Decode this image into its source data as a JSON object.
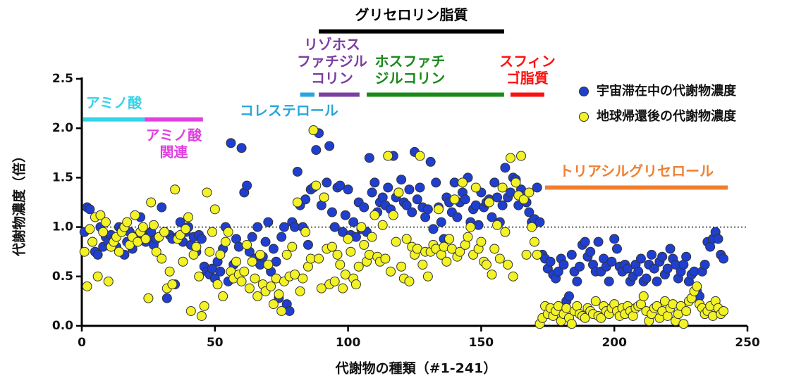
{
  "chart_data": {
    "type": "scatter",
    "x_label": "代謝物の種類（#1-241）",
    "y_label": "代謝物濃度（倍）",
    "xlim": [
      0,
      250
    ],
    "xticks": [
      0,
      50,
      100,
      150,
      200,
      250
    ],
    "ylim": [
      0,
      2.5
    ],
    "yticks": [
      {
        "value": 0,
        "label": "0.0"
      },
      0.5,
      {
        "value": 1,
        "label": "1.0"
      },
      1.5,
      {
        "value": 2,
        "label": "2.0"
      },
      2.5
    ],
    "reference_line": 1,
    "legend": "top right",
    "x": [
      1,
      2,
      3,
      4,
      5,
      6,
      7,
      8,
      9,
      10,
      11,
      12,
      13,
      14,
      15,
      16,
      17,
      18,
      19,
      20,
      21,
      22,
      23,
      24,
      25,
      26,
      27,
      28,
      29,
      30,
      31,
      32,
      33,
      34,
      35,
      36,
      37,
      38,
      39,
      40,
      41,
      42,
      43,
      44,
      45,
      46,
      47,
      48,
      49,
      50,
      51,
      52,
      53,
      54,
      55,
      56,
      57,
      58,
      59,
      60,
      61,
      62,
      63,
      64,
      65,
      66,
      67,
      68,
      69,
      70,
      71,
      72,
      73,
      74,
      75,
      76,
      77,
      78,
      79,
      80,
      81,
      82,
      83,
      84,
      85,
      86,
      87,
      88,
      89,
      90,
      91,
      92,
      93,
      94,
      95,
      96,
      97,
      98,
      99,
      100,
      101,
      102,
      103,
      104,
      105,
      106,
      107,
      108,
      109,
      110,
      111,
      112,
      113,
      114,
      115,
      116,
      117,
      118,
      119,
      120,
      121,
      122,
      123,
      124,
      125,
      126,
      127,
      128,
      129,
      130,
      131,
      132,
      133,
      134,
      135,
      136,
      137,
      138,
      139,
      140,
      141,
      142,
      143,
      144,
      145,
      146,
      147,
      148,
      149,
      150,
      151,
      152,
      153,
      154,
      155,
      156,
      157,
      158,
      159,
      160,
      161,
      162,
      163,
      164,
      165,
      166,
      167,
      168,
      169,
      170,
      171,
      172,
      173,
      174,
      175,
      176,
      177,
      178,
      179,
      180,
      181,
      182,
      183,
      184,
      185,
      186,
      187,
      188,
      189,
      190,
      191,
      192,
      193,
      194,
      195,
      196,
      197,
      198,
      199,
      200,
      201,
      202,
      203,
      204,
      205,
      206,
      207,
      208,
      209,
      210,
      211,
      212,
      213,
      214,
      215,
      216,
      217,
      218,
      219,
      220,
      221,
      222,
      223,
      224,
      225,
      226,
      227,
      228,
      229,
      230,
      231,
      232,
      233,
      234,
      235,
      236,
      237,
      238,
      239,
      240,
      241
    ],
    "series": [
      {
        "name": "宇宙滞在中の代謝物濃度",
        "color": "#1f3fd0",
        "values": [
          0.95,
          1.2,
          1.18,
          0.85,
          0.75,
          0.72,
          1.0,
          0.8,
          0.9,
          0.85,
          0.92,
          0.88,
          0.8,
          1.0,
          0.98,
          0.72,
          0.85,
          0.95,
          0.78,
          0.9,
          0.88,
          1.1,
          0.95,
          0.85,
          0.9,
          0.95,
          0.82,
          0.88,
          0.9,
          1.2,
          0.95,
          0.28,
          0.92,
          0.88,
          0.42,
          0.9,
          1.05,
          0.85,
          0.95,
          1.0,
          0.82,
          0.9,
          0.75,
          0.92,
          0.88,
          0.6,
          0.55,
          0.52,
          0.58,
          0.48,
          0.65,
          0.55,
          0.78,
          1.0,
          0.45,
          1.85,
          0.62,
          0.88,
          0.8,
          1.8,
          1.35,
          1.42,
          0.75,
          0.9,
          0.68,
          1.0,
          0.62,
          0.7,
          0.85,
          1.05,
          0.55,
          0.78,
          0.65,
          0.28,
          0.9,
          1.0,
          0.22,
          0.15,
          1.05,
          1.0,
          1.56,
          1.22,
          1.0,
          1.28,
          0.82,
          1.38,
          1.4,
          1.78,
          1.95,
          1.22,
          1.3,
          1.45,
          1.82,
          1.15,
          1.0,
          1.4,
          1.42,
          0.95,
          1.12,
          1.38,
          0.92,
          1.05,
          0.9,
          1.25,
          0.98,
          1.2,
          0.95,
          1.7,
          1.35,
          1.45,
          1.15,
          1.25,
          1.3,
          1.22,
          1.4,
          1.18,
          1.72,
          1.3,
          1.35,
          1.48,
          1.25,
          1.22,
          1.38,
          1.15,
          1.76,
          1.28,
          1.4,
          1.2,
          1.1,
          1.18,
          1.66,
          0.98,
          1.45,
          1.2,
          1.05,
          0.88,
          1.3,
          1.25,
          1.15,
          1.45,
          1.1,
          1.25,
          1.35,
          1.28,
          1.5,
          1.05,
          1.18,
          1.22,
          1.02,
          1.35,
          1.2,
          1.25,
          1.28,
          1.1,
          1.45,
          1.3,
          1.05,
          1.22,
          1.6,
          1.3,
          1.35,
          1.5,
          1.48,
          1.22,
          1.38,
          1.32,
          1.25,
          1.15,
          1.05,
          1.08,
          1.4,
          1.05,
          0.72,
          0.68,
          0.58,
          0.65,
          0.52,
          0.48,
          0.55,
          0.68,
          0.62,
          0.25,
          0.3,
          0.72,
          0.55,
          0.45,
          0.6,
          0.82,
          0.85,
          0.7,
          0.75,
          0.62,
          0.55,
          0.85,
          0.55,
          0.68,
          0.6,
          0.45,
          0.65,
          0.88,
          0.78,
          0.6,
          0.55,
          0.62,
          0.58,
          0.45,
          0.5,
          0.62,
          0.55,
          0.68,
          0.45,
          0.48,
          0.62,
          0.72,
          0.58,
          0.45,
          0.65,
          0.7,
          0.52,
          0.58,
          0.78,
          0.68,
          0.62,
          0.48,
          0.55,
          0.62,
          0.7,
          0.45,
          0.52,
          0.55,
          0.35,
          0.3,
          0.55,
          0.62,
          0.85,
          0.8,
          0.88,
          0.95,
          0.88,
          0.72,
          0.68
        ]
      },
      {
        "name": "地球帰還後の代謝物濃度",
        "color": "#f2f224",
        "values": [
          0.75,
          0.4,
          0.98,
          0.85,
          1.1,
          0.5,
          1.12,
          0.95,
          1.05,
          0.45,
          0.8,
          0.85,
          0.9,
          0.75,
          0.95,
          1.0,
          1.05,
          0.82,
          0.9,
          1.12,
          0.85,
          0.95,
          1.0,
          0.88,
          0.28,
          1.25,
          1.02,
          0.75,
          0.9,
          0.68,
          0.95,
          0.38,
          0.55,
          0.42,
          1.38,
          0.88,
          0.92,
          0.65,
          0.98,
          1.1,
          0.15,
          0.72,
          0.8,
          0.5,
          0.1,
          0.2,
          1.35,
          0.75,
          0.95,
          1.18,
          0.42,
          0.72,
          0.3,
          0.85,
          0.95,
          0.55,
          0.48,
          0.65,
          0.52,
          0.45,
          0.55,
          0.82,
          0.38,
          0.65,
          0.48,
          0.3,
          0.72,
          0.42,
          0.35,
          0.62,
          0.4,
          0.22,
          0.48,
          0.32,
          0.15,
          0.45,
          0.72,
          0.5,
          0.8,
          0.52,
          1.25,
          0.35,
          0.48,
          0.95,
          0.6,
          0.68,
          1.98,
          1.42,
          0.68,
          0.38,
          1.3,
          0.78,
          0.42,
          0.8,
          0.45,
          0.72,
          0.62,
          0.38,
          0.52,
          0.88,
          0.75,
          0.48,
          0.42,
          0.6,
          1.0,
          0.82,
          0.65,
          0.72,
          0.9,
          1.12,
          0.7,
          0.65,
          1.02,
          0.68,
          1.72,
          0.55,
          1.12,
          0.85,
          1.35,
          0.6,
          0.48,
          0.88,
          0.45,
          0.8,
          0.72,
          0.78,
          1.72,
          0.62,
          0.75,
          0.5,
          0.75,
          0.82,
          0.78,
          1.18,
          0.72,
          0.8,
          0.65,
          0.88,
          0.78,
          1.28,
          0.7,
          0.75,
          1.45,
          0.82,
          0.9,
          1.0,
          0.72,
          1.4,
          0.78,
          0.85,
          0.65,
          0.62,
          1.25,
          0.52,
          0.78,
          1.02,
          0.68,
          1.4,
          0.95,
          0.62,
          1.7,
          0.5,
          1.45,
          1.32,
          1.72,
          1.28,
          0.72,
          1.35,
          1.0,
          0.85,
          0.72,
          0.02,
          0.08,
          0.2,
          0.12,
          0.18,
          0.1,
          0.15,
          0.2,
          0.05,
          0.12,
          0.18,
          0.08,
          0.02,
          0.15,
          0.2,
          0.12,
          0.1,
          0.08,
          0.18,
          0.15,
          0.12,
          0.25,
          0.1,
          0.08,
          0.2,
          0.15,
          0.12,
          0.18,
          0.22,
          0.15,
          0.1,
          0.18,
          0.12,
          0.2,
          0.15,
          0.1,
          0.18,
          0.2,
          0.22,
          0.3,
          0.15,
          0.05,
          0.12,
          0.18,
          0.2,
          0.08,
          0.15,
          0.25,
          0.1,
          0.18,
          0.22,
          0.05,
          0.12,
          0.2,
          0.02,
          0.15,
          0.25,
          0.28,
          0.35,
          0.4,
          0.22,
          0.18,
          0.12,
          0.15,
          0.2,
          0.1,
          0.25,
          0.18,
          0.12,
          0.15
        ]
      }
    ],
    "annotations": [
      {
        "text": [
          "グリセロリン脂質"
        ],
        "color": "#000000",
        "range": [
          89,
          158.6
        ],
        "y": 2.98
      },
      {
        "text": [
          "アミノ酸"
        ],
        "color": "#33d3e8",
        "range": [
          0.5,
          23.6
        ],
        "y": 2.09
      },
      {
        "text": [
          "アミノ酸",
          "関連"
        ],
        "color": "#e040e0",
        "range": [
          23.6,
          45.5
        ],
        "y": 2.09
      },
      {
        "text": [
          "コレステロール"
        ],
        "color": "#2aa6dc",
        "range": [
          82,
          87.4
        ],
        "y": 2.34
      },
      {
        "text": [
          "リゾホス",
          "ファチジル",
          "コリン"
        ],
        "color": "#7b3fa0",
        "range": [
          89,
          104.3
        ],
        "y": 2.34
      },
      {
        "text": [
          "ホスファチ",
          "ジルコリン"
        ],
        "color": "#1a8a1a",
        "range": [
          107,
          158.6
        ],
        "y": 2.34
      },
      {
        "text": [
          "スフィン",
          "ゴ脂質"
        ],
        "color": "#ff1010",
        "range": [
          161,
          173.7
        ],
        "y": 2.34
      },
      {
        "text": [
          "トリアシルグリセロール"
        ],
        "color": "#f08030",
        "range": [
          174,
          242.6
        ],
        "y": 1.4
      }
    ]
  }
}
